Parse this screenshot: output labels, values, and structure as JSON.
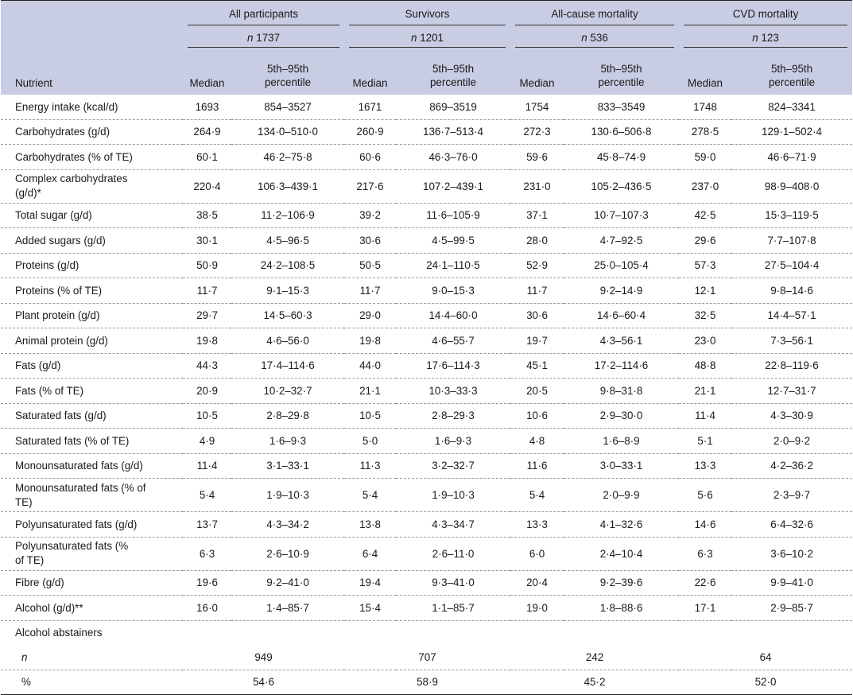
{
  "header": {
    "groups": [
      "All participants",
      "Survivors",
      "All-cause mortality",
      "CVD mortality"
    ],
    "n_prefix": "n",
    "group_n": [
      "1737",
      "1201",
      "536",
      "123"
    ],
    "nutrient_label": "Nutrient",
    "median_label": "Median",
    "pct_line1": "5th–95th",
    "pct_line2": "percentile"
  },
  "rows": [
    {
      "label": "Energy intake (kcal/d)",
      "cells": [
        "1693",
        "854–3527",
        "1671",
        "869–3519",
        "1754",
        "833–3549",
        "1748",
        "824–3341"
      ]
    },
    {
      "label": "Carbohydrates (g/d)",
      "cells": [
        "264·9",
        "134·0–510·0",
        "260·9",
        "136·7–513·4",
        "272·3",
        "130·6–506·8",
        "278·5",
        "129·1–502·4"
      ]
    },
    {
      "label": "Carbohydrates (% of TE)",
      "cells": [
        "60·1",
        "46·2–75·8",
        "60·6",
        "46·3–76·0",
        "59·6",
        "45·8–74·9",
        "59·0",
        "46·6–71·9"
      ]
    },
    {
      "label": "Complex carbohydrates (g/d)*",
      "cells": [
        "220·4",
        "106·3–439·1",
        "217·6",
        "107·2–439·1",
        "231·0",
        "105·2–436·5",
        "237·0",
        "98·9–408·0"
      ]
    },
    {
      "label": "Total sugar (g/d)",
      "cells": [
        "38·5",
        "11·2–106·9",
        "39·2",
        "11·6–105·9",
        "37·1",
        "10·7–107·3",
        "42·5",
        "15·3–119·5"
      ]
    },
    {
      "label": "Added sugars (g/d)",
      "cells": [
        "30·1",
        "4·5–96·5",
        "30·6",
        "4·5–99·5",
        "28·0",
        "4·7–92·5",
        "29·6",
        "7·7–107·8"
      ]
    },
    {
      "label": "Proteins (g/d)",
      "cells": [
        "50·9",
        "24·2–108·5",
        "50·5",
        "24·1–110·5",
        "52·9",
        "25·0–105·4",
        "57·3",
        "27·5–104·4"
      ]
    },
    {
      "label": "Proteins (% of TE)",
      "cells": [
        "11·7",
        "9·1–15·3",
        "11·7",
        "9·0–15·3",
        "11·7",
        "9·2–14·9",
        "12·1",
        "9·8–14·6"
      ]
    },
    {
      "label": "Plant protein (g/d)",
      "cells": [
        "29·7",
        "14·5–60·3",
        "29·0",
        "14·4–60·0",
        "30·6",
        "14·6–60·4",
        "32·5",
        "14·4–57·1"
      ]
    },
    {
      "label": "Animal protein (g/d)",
      "cells": [
        "19·8",
        "4·6–56·0",
        "19·8",
        "4·6–55·7",
        "19·7",
        "4·3–56·1",
        "23·0",
        "7·3–56·1"
      ]
    },
    {
      "label": "Fats (g/d)",
      "cells": [
        "44·3",
        "17·4–114·6",
        "44·0",
        "17·6–114·3",
        "45·1",
        "17·2–114·6",
        "48·8",
        "22·8–119·6"
      ]
    },
    {
      "label": "Fats (% of TE)",
      "cells": [
        "20·9",
        "10·2–32·7",
        "21·1",
        "10·3–33·3",
        "20·5",
        "9·8–31·8",
        "21·1",
        "12·7–31·7"
      ]
    },
    {
      "label": "Saturated fats (g/d)",
      "cells": [
        "10·5",
        "2·8–29·8",
        "10·5",
        "2·8–29·3",
        "10·6",
        "2·9–30·0",
        "11·4",
        "4·3–30·9"
      ]
    },
    {
      "label": "Saturated fats (% of TE)",
      "cells": [
        "4·9",
        "1·6–9·3",
        "5·0",
        "1·6–9·3",
        "4·8",
        "1·6–8·9",
        "5·1",
        "2·0–9·2"
      ]
    },
    {
      "label": "Monounsaturated fats (g/d)",
      "cells": [
        "11·4",
        "3·1–33·1",
        "11·3",
        "3·2–32·7",
        "11·6",
        "3·0–33·1",
        "13·3",
        "4·2–36·2"
      ]
    },
    {
      "label": "Monounsaturated fats (% of TE)",
      "cells": [
        "5·4",
        "1·9–10·3",
        "5·4",
        "1·9–10·3",
        "5·4",
        "2·0–9·9",
        "5·6",
        "2·3–9·7"
      ]
    },
    {
      "label": "Polyunsaturated fats (g/d)",
      "cells": [
        "13·7",
        "4·3–34·2",
        "13·8",
        "4·3–34·7",
        "13·3",
        "4·1–32·6",
        "14·6",
        "6·4–32·6"
      ]
    },
    {
      "label": "Polyunsaturated fats (% of TE)",
      "cells": [
        "6·3",
        "2·6–10·9",
        "6·4",
        "2·6–11·0",
        "6·0",
        "2·4–10·4",
        "6·3",
        "3·6–10·2"
      ]
    },
    {
      "label": "Fibre (g/d)",
      "cells": [
        "19·6",
        "9·2–41·0",
        "19·4",
        "9·3–41·0",
        "20·4",
        "9·2–39·6",
        "22·6",
        "9·9–41·0"
      ]
    },
    {
      "label": "Alcohol (g/d)**",
      "cells": [
        "16·0",
        "1·4–85·7",
        "15·4",
        "1·1–85·7",
        "19·0",
        "1·8–88·6",
        "17·1",
        "2·9–85·7"
      ]
    }
  ],
  "abstainers": {
    "label": "Alcohol abstainers",
    "n_label": "n",
    "n_values": [
      "949",
      "707",
      "242",
      "64"
    ],
    "pct_label": "%",
    "pct_values": [
      "54·6",
      "58·9",
      "45·2",
      "52·0"
    ]
  }
}
